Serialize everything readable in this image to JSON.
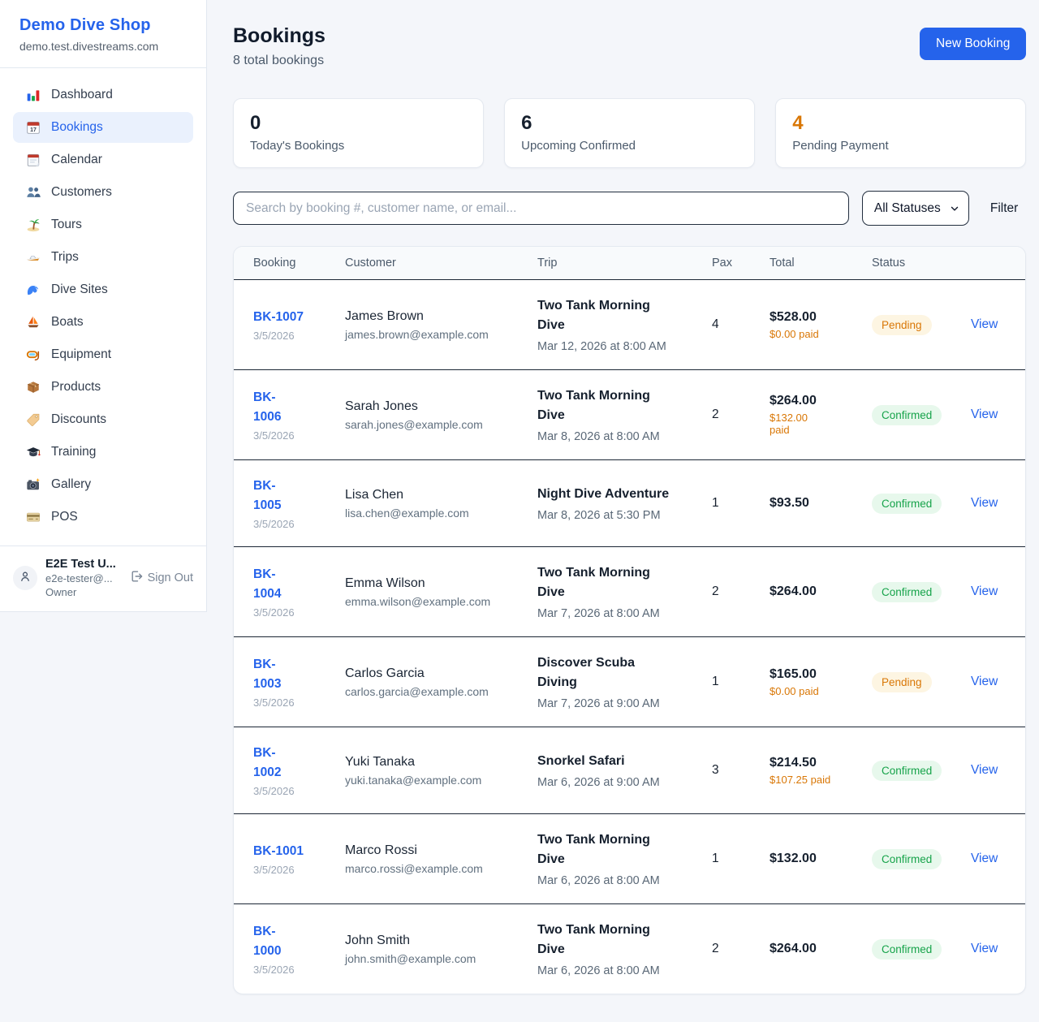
{
  "sidebar": {
    "shop_name": "Demo Dive Shop",
    "shop_domain": "demo.test.divestreams.com",
    "items": [
      {
        "label": "Dashboard",
        "icon": "bar-chart-icon",
        "active": false
      },
      {
        "label": "Bookings",
        "icon": "calendar-date-icon",
        "active": true
      },
      {
        "label": "Calendar",
        "icon": "calendar-icon",
        "active": false
      },
      {
        "label": "Customers",
        "icon": "people-icon",
        "active": false
      },
      {
        "label": "Tours",
        "icon": "island-icon",
        "active": false
      },
      {
        "label": "Trips",
        "icon": "speedboat-icon",
        "active": false
      },
      {
        "label": "Dive Sites",
        "icon": "wave-icon",
        "active": false
      },
      {
        "label": "Boats",
        "icon": "sailboat-icon",
        "active": false
      },
      {
        "label": "Equipment",
        "icon": "dive-mask-icon",
        "active": false
      },
      {
        "label": "Products",
        "icon": "package-icon",
        "active": false
      },
      {
        "label": "Discounts",
        "icon": "tag-icon",
        "active": false
      },
      {
        "label": "Training",
        "icon": "grad-cap-icon",
        "active": false
      },
      {
        "label": "Gallery",
        "icon": "camera-icon",
        "active": false
      },
      {
        "label": "POS",
        "icon": "credit-card-icon",
        "active": false
      }
    ],
    "user": {
      "name": "E2E Test U...",
      "email": "e2e-tester@...",
      "role": "Owner",
      "sign_out_label": "Sign Out"
    }
  },
  "header": {
    "title": "Bookings",
    "subtitle": "8 total bookings",
    "new_booking_label": "New Booking"
  },
  "stats": [
    {
      "value": "0",
      "label": "Today's Bookings",
      "value_color": "#16202e"
    },
    {
      "value": "6",
      "label": "Upcoming Confirmed",
      "value_color": "#16202e"
    },
    {
      "value": "4",
      "label": "Pending Payment",
      "value_color": "#d97706"
    }
  ],
  "filters": {
    "search_placeholder": "Search by booking #, customer name, or email...",
    "search_value": "",
    "status_selected": "All Statuses",
    "filter_label": "Filter"
  },
  "table": {
    "columns": [
      "Booking",
      "Customer",
      "Trip",
      "Pax",
      "Total",
      "Status"
    ],
    "rows": [
      {
        "number": "BK-1007",
        "number_two_lines": false,
        "date": "3/5/2026",
        "customer_name": "James Brown",
        "customer_email": "james.brown@example.com",
        "trip_name": "Two Tank Morning Dive",
        "trip_two_lines": true,
        "trip_datetime": "Mar 12, 2026 at 8:00 AM",
        "pax": "4",
        "total": "$528.00",
        "paid": "$0.00 paid",
        "paid_two_lines": false,
        "status": "Pending",
        "status_type": "pending",
        "view_label": "View"
      },
      {
        "number": "BK-1006",
        "number_two_lines": true,
        "date": "3/5/2026",
        "customer_name": "Sarah Jones",
        "customer_email": "sarah.jones@example.com",
        "trip_name": "Two Tank Morning Dive",
        "trip_two_lines": true,
        "trip_datetime": "Mar 8, 2026 at 8:00 AM",
        "pax": "2",
        "total": "$264.00",
        "paid": "$132.00 paid",
        "paid_two_lines": true,
        "status": "Confirmed",
        "status_type": "confirmed",
        "view_label": "View"
      },
      {
        "number": "BK-1005",
        "number_two_lines": true,
        "date": "3/5/2026",
        "customer_name": "Lisa Chen",
        "customer_email": "lisa.chen@example.com",
        "trip_name": "Night Dive Adventure",
        "trip_two_lines": false,
        "trip_datetime": "Mar 8, 2026 at 5:30 PM",
        "pax": "1",
        "total": "$93.50",
        "paid": null,
        "paid_two_lines": false,
        "status": "Confirmed",
        "status_type": "confirmed",
        "view_label": "View"
      },
      {
        "number": "BK-1004",
        "number_two_lines": true,
        "date": "3/5/2026",
        "customer_name": "Emma Wilson",
        "customer_email": "emma.wilson@example.com",
        "trip_name": "Two Tank Morning Dive",
        "trip_two_lines": true,
        "trip_datetime": "Mar 7, 2026 at 8:00 AM",
        "pax": "2",
        "total": "$264.00",
        "paid": null,
        "paid_two_lines": false,
        "status": "Confirmed",
        "status_type": "confirmed",
        "view_label": "View"
      },
      {
        "number": "BK-1003",
        "number_two_lines": true,
        "date": "3/5/2026",
        "customer_name": "Carlos Garcia",
        "customer_email": "carlos.garcia@example.com",
        "trip_name": "Discover Scuba Diving",
        "trip_two_lines": true,
        "trip_datetime": "Mar 7, 2026 at 9:00 AM",
        "pax": "1",
        "total": "$165.00",
        "paid": "$0.00 paid",
        "paid_two_lines": false,
        "status": "Pending",
        "status_type": "pending",
        "view_label": "View"
      },
      {
        "number": "BK-1002",
        "number_two_lines": true,
        "date": "3/5/2026",
        "customer_name": "Yuki Tanaka",
        "customer_email": "yuki.tanaka@example.com",
        "trip_name": "Snorkel Safari",
        "trip_two_lines": false,
        "trip_datetime": "Mar 6, 2026 at 9:00 AM",
        "pax": "3",
        "total": "$214.50",
        "paid": "$107.25 paid",
        "paid_two_lines": false,
        "status": "Confirmed",
        "status_type": "confirmed",
        "view_label": "View"
      },
      {
        "number": "BK-1001",
        "number_two_lines": false,
        "date": "3/5/2026",
        "customer_name": "Marco Rossi",
        "customer_email": "marco.rossi@example.com",
        "trip_name": "Two Tank Morning Dive",
        "trip_two_lines": true,
        "trip_datetime": "Mar 6, 2026 at 8:00 AM",
        "pax": "1",
        "total": "$132.00",
        "paid": null,
        "paid_two_lines": false,
        "status": "Confirmed",
        "status_type": "confirmed",
        "view_label": "View"
      },
      {
        "number": "BK-1000",
        "number_two_lines": true,
        "date": "3/5/2026",
        "customer_name": "John Smith",
        "customer_email": "john.smith@example.com",
        "trip_name": "Two Tank Morning Dive",
        "trip_two_lines": true,
        "trip_datetime": "Mar 6, 2026 at 8:00 AM",
        "pax": "2",
        "total": "$264.00",
        "paid": null,
        "paid_two_lines": false,
        "status": "Confirmed",
        "status_type": "confirmed",
        "view_label": "View"
      }
    ]
  },
  "colors": {
    "accent_blue": "#2563eb",
    "pending_orange": "#d97706",
    "confirmed_green": "#16a34a",
    "row_divider": "#1b2635",
    "card_border": "#e4e9f0",
    "page_bg": "#f4f6fa"
  }
}
